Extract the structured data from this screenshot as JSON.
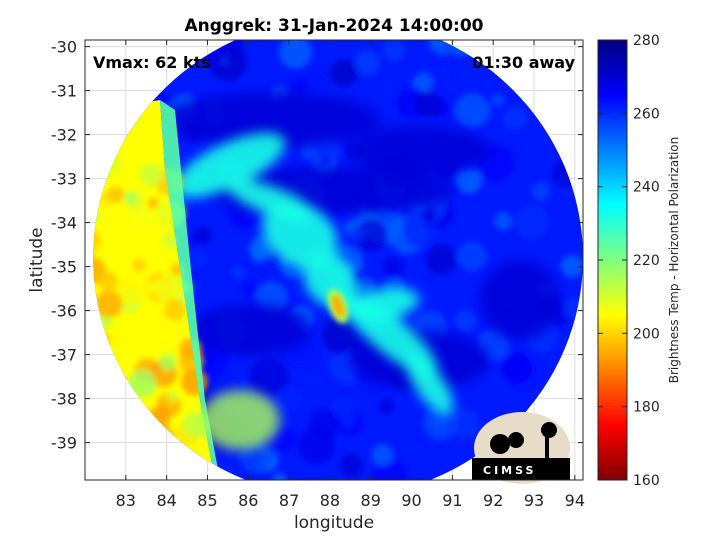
{
  "chart_data": {
    "type": "heatmap",
    "title": "Anggrek: 31-Jan-2024 14:00:00",
    "xlabel": "longitude",
    "ylabel": "latitude",
    "xlim": [
      82,
      94.2
    ],
    "ylim": [
      -39.85,
      -29.85
    ],
    "xticks": [
      83,
      84,
      85,
      86,
      87,
      88,
      89,
      90,
      91,
      92,
      93,
      94
    ],
    "yticks": [
      -30,
      -31,
      -32,
      -33,
      -34,
      -35,
      -36,
      -37,
      -38,
      -39
    ],
    "grid": true,
    "annotations": [
      "Vmax: 62 kts",
      "01:30 away"
    ],
    "colorbar": {
      "label": "Brightness Temp - Horizontal Polarization",
      "range": [
        160,
        280
      ],
      "ticks": [
        280,
        260,
        240,
        220,
        200,
        180,
        160
      ],
      "colors": [
        "#800000",
        "#ff0000",
        "#ff8000",
        "#ffff00",
        "#80ff80",
        "#00ffff",
        "#0080ff",
        "#0000ff",
        "#000080"
      ]
    },
    "swath_center": [
      88.2,
      -34.8
    ],
    "swath_radius_deg": [
      6.0,
      5.45
    ],
    "features": [
      {
        "kind": "warm_land_region",
        "lon_range": [
          82,
          85.5
        ],
        "lat_range": [
          -39.85,
          -31.5
        ],
        "value": 205
      },
      {
        "kind": "cold_background",
        "value": 262
      },
      {
        "kind": "deep_cold_band",
        "value": 270
      },
      {
        "kind": "warm_core",
        "lon": 88.2,
        "lat": -35.9,
        "value": 195
      },
      {
        "kind": "spiral_band",
        "value": 232
      }
    ],
    "logo": "CIMSS"
  }
}
